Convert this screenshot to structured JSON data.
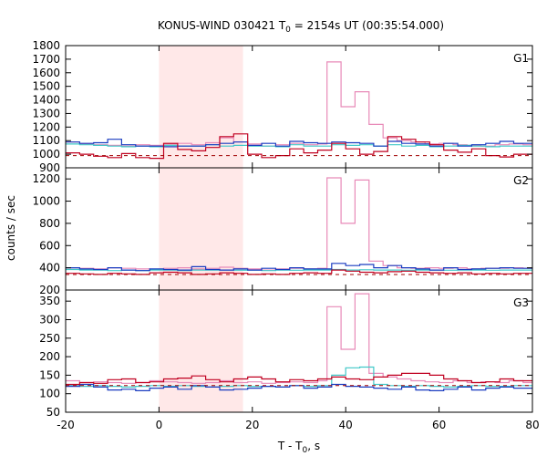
{
  "chart_data": {
    "type": "line",
    "title": "KONUS-WIND 030421 T",
    "title_sub": "0",
    "title_rest": " = 2154s UT (00:35:54.000)",
    "xlabel": "T - T",
    "xlabel_sub": "0",
    "xlabel_rest": ", s",
    "ylabel": "counts / sec",
    "xlim": [
      -20,
      80
    ],
    "xticks": [
      -20,
      0,
      20,
      40,
      60,
      80
    ],
    "highlight_interval": [
      0,
      18
    ],
    "highlight_color": "#ffe8e8",
    "colors": {
      "pink": "#e88ab8",
      "cyan": "#40c8c8",
      "blue": "#1a3cc0",
      "red": "#c00020",
      "background_dash": "#a00000"
    },
    "panels": [
      {
        "label": "G1",
        "ylim": [
          900,
          1800
        ],
        "yticks": [
          900,
          1000,
          1100,
          1200,
          1300,
          1400,
          1500,
          1600,
          1700,
          1800
        ],
        "background": 990,
        "series": [
          {
            "color": "pink",
            "x": [
              -20,
              -17,
              -14,
              -11,
              -8,
              -5,
              -2,
              1,
              4,
              7,
              10,
              13,
              16,
              19,
              22,
              25,
              28,
              31,
              34,
              36,
              39,
              42,
              45,
              48,
              51,
              54,
              57,
              60,
              63,
              66,
              69,
              72,
              75,
              78,
              80
            ],
            "y": [
              1090,
              1075,
              1070,
              1065,
              1060,
              1070,
              1065,
              1075,
              1080,
              1070,
              1085,
              1120,
              1090,
              1075,
              1060,
              1070,
              1080,
              1070,
              1075,
              1680,
              1350,
              1460,
              1220,
              1120,
              1100,
              1090,
              1075,
              1080,
              1070,
              1065,
              1060,
              1070,
              1075,
              1070,
              1070
            ]
          },
          {
            "color": "cyan",
            "x": [
              -20,
              -17,
              -14,
              -11,
              -8,
              -5,
              -2,
              1,
              4,
              7,
              10,
              13,
              16,
              19,
              22,
              25,
              28,
              31,
              34,
              37,
              40,
              43,
              46,
              49,
              52,
              55,
              58,
              61,
              64,
              67,
              70,
              73,
              76,
              80
            ],
            "y": [
              1075,
              1070,
              1065,
              1060,
              1055,
              1060,
              1055,
              1065,
              1060,
              1060,
              1070,
              1060,
              1065,
              1060,
              1060,
              1055,
              1070,
              1060,
              1060,
              1070,
              1065,
              1070,
              1060,
              1070,
              1060,
              1065,
              1055,
              1060,
              1065,
              1060,
              1055,
              1060,
              1060,
              1060
            ]
          },
          {
            "color": "blue",
            "x": [
              -20,
              -17,
              -14,
              -11,
              -8,
              -5,
              -2,
              1,
              4,
              7,
              10,
              13,
              16,
              19,
              22,
              25,
              28,
              31,
              34,
              37,
              40,
              43,
              46,
              49,
              52,
              55,
              58,
              61,
              64,
              67,
              70,
              73,
              76,
              80
            ],
            "y": [
              1090,
              1080,
              1085,
              1110,
              1070,
              1060,
              1060,
              1055,
              1060,
              1060,
              1070,
              1080,
              1090,
              1065,
              1080,
              1060,
              1095,
              1085,
              1080,
              1090,
              1085,
              1080,
              1060,
              1095,
              1080,
              1075,
              1060,
              1080,
              1060,
              1070,
              1080,
              1095,
              1080,
              1080
            ]
          },
          {
            "color": "red",
            "x": [
              -20,
              -17,
              -14,
              -11,
              -8,
              -5,
              -2,
              1,
              4,
              7,
              10,
              13,
              16,
              19,
              22,
              25,
              28,
              31,
              34,
              37,
              40,
              43,
              46,
              49,
              52,
              55,
              58,
              61,
              64,
              67,
              70,
              73,
              76,
              80
            ],
            "y": [
              1010,
              1000,
              985,
              975,
              1005,
              975,
              970,
              1080,
              1035,
              1025,
              1050,
              1130,
              1150,
              1000,
              975,
              990,
              1040,
              1010,
              1030,
              1080,
              1040,
              1000,
              1020,
              1130,
              1110,
              1090,
              1070,
              1030,
              1015,
              1040,
              990,
              980,
              1000,
              1000
            ]
          }
        ]
      },
      {
        "label": "G2",
        "ylim": [
          200,
          1300
        ],
        "yticks": [
          200,
          400,
          600,
          800,
          1000,
          1200
        ],
        "background": 340,
        "series": [
          {
            "color": "pink",
            "x": [
              -20,
              -17,
              -14,
              -11,
              -8,
              -5,
              -2,
              1,
              4,
              7,
              10,
              13,
              16,
              19,
              22,
              25,
              28,
              31,
              34,
              36,
              39,
              42,
              45,
              48,
              51,
              54,
              57,
              60,
              63,
              66,
              69,
              72,
              75,
              78,
              80
            ],
            "y": [
              400,
              395,
              390,
              400,
              395,
              390,
              385,
              395,
              400,
              390,
              395,
              405,
              395,
              390,
              380,
              390,
              395,
              390,
              395,
              1210,
              800,
              1190,
              460,
              420,
              400,
              395,
              400,
              395,
              400,
              390,
              395,
              395,
              400,
              395,
              395
            ]
          },
          {
            "color": "cyan",
            "x": [
              -20,
              -17,
              -14,
              -11,
              -8,
              -5,
              -2,
              1,
              4,
              7,
              10,
              13,
              16,
              19,
              22,
              25,
              28,
              31,
              34,
              37,
              40,
              43,
              46,
              49,
              52,
              55,
              58,
              61,
              64,
              67,
              70,
              73,
              76,
              80
            ],
            "y": [
              385,
              380,
              380,
              375,
              380,
              375,
              380,
              380,
              375,
              380,
              380,
              380,
              378,
              380,
              375,
              380,
              378,
              380,
              380,
              385,
              380,
              382,
              380,
              380,
              378,
              380,
              380,
              378,
              380,
              380,
              378,
              380,
              380,
              380
            ]
          },
          {
            "color": "blue",
            "x": [
              -20,
              -17,
              -14,
              -11,
              -8,
              -5,
              -2,
              1,
              4,
              7,
              10,
              13,
              16,
              19,
              22,
              25,
              28,
              31,
              34,
              37,
              40,
              43,
              46,
              49,
              52,
              55,
              58,
              61,
              64,
              67,
              70,
              73,
              76,
              80
            ],
            "y": [
              400,
              390,
              385,
              400,
              380,
              375,
              390,
              385,
              380,
              410,
              385,
              380,
              390,
              380,
              395,
              385,
              400,
              390,
              390,
              440,
              420,
              430,
              400,
              420,
              400,
              390,
              380,
              400,
              385,
              390,
              395,
              400,
              395,
              395
            ]
          },
          {
            "color": "red",
            "x": [
              -20,
              -17,
              -14,
              -11,
              -8,
              -5,
              -2,
              1,
              4,
              7,
              10,
              13,
              16,
              19,
              22,
              25,
              28,
              31,
              34,
              37,
              40,
              43,
              46,
              49,
              52,
              55,
              58,
              61,
              64,
              67,
              70,
              73,
              76,
              80
            ],
            "y": [
              350,
              345,
              340,
              350,
              345,
              340,
              355,
              360,
              355,
              340,
              345,
              355,
              350,
              340,
              345,
              340,
              350,
              355,
              350,
              380,
              370,
              360,
              355,
              365,
              370,
              360,
              355,
              350,
              355,
              345,
              350,
              345,
              350,
              350
            ]
          }
        ]
      },
      {
        "label": "G3",
        "ylim": [
          50,
          380
        ],
        "yticks": [
          50,
          100,
          150,
          200,
          250,
          300,
          350
        ],
        "background": 122,
        "series": [
          {
            "color": "pink",
            "x": [
              -20,
              -17,
              -14,
              -11,
              -8,
              -5,
              -2,
              1,
              4,
              7,
              10,
              13,
              16,
              19,
              22,
              25,
              28,
              31,
              34,
              36,
              39,
              42,
              45,
              48,
              51,
              54,
              57,
              60,
              63,
              66,
              69,
              72,
              75,
              78,
              80
            ],
            "y": [
              135,
              130,
              132,
              130,
              128,
              130,
              135,
              132,
              130,
              128,
              130,
              135,
              130,
              132,
              128,
              130,
              132,
              130,
              135,
              335,
              220,
              370,
              155,
              145,
              140,
              135,
              132,
              130,
              135,
              130,
              132,
              130,
              135,
              130,
              130
            ]
          },
          {
            "color": "cyan",
            "x": [
              -20,
              -17,
              -14,
              -11,
              -8,
              -5,
              -2,
              1,
              4,
              7,
              10,
              13,
              16,
              19,
              22,
              25,
              28,
              31,
              34,
              37,
              40,
              43,
              46,
              49,
              52,
              55,
              58,
              61,
              64,
              67,
              70,
              73,
              76,
              80
            ],
            "y": [
              122,
              120,
              122,
              120,
              118,
              120,
              122,
              120,
              122,
              120,
              118,
              120,
              122,
              120,
              120,
              118,
              122,
              120,
              122,
              150,
              170,
              172,
              125,
              122,
              120,
              122,
              120,
              118,
              120,
              122,
              120,
              120,
              122,
              122
            ]
          },
          {
            "color": "blue",
            "x": [
              -20,
              -17,
              -14,
              -11,
              -8,
              -5,
              -2,
              1,
              4,
              7,
              10,
              13,
              16,
              19,
              22,
              25,
              28,
              31,
              34,
              37,
              40,
              43,
              46,
              49,
              52,
              55,
              58,
              61,
              64,
              67,
              70,
              73,
              76,
              80
            ],
            "y": [
              120,
              125,
              118,
              110,
              112,
              108,
              115,
              118,
              112,
              122,
              118,
              110,
              112,
              115,
              120,
              118,
              122,
              115,
              118,
              125,
              120,
              118,
              115,
              112,
              118,
              110,
              108,
              112,
              118,
              110,
              115,
              118,
              115,
              115
            ]
          },
          {
            "color": "red",
            "x": [
              -20,
              -17,
              -14,
              -11,
              -8,
              -5,
              -2,
              1,
              4,
              7,
              10,
              13,
              16,
              19,
              22,
              25,
              28,
              31,
              34,
              37,
              40,
              43,
              46,
              49,
              52,
              55,
              58,
              61,
              64,
              67,
              70,
              73,
              76,
              80
            ],
            "y": [
              125,
              130,
              128,
              138,
              140,
              130,
              132,
              140,
              142,
              148,
              138,
              132,
              140,
              145,
              140,
              132,
              138,
              135,
              140,
              145,
              140,
              138,
              145,
              150,
              155,
              155,
              150,
              140,
              135,
              130,
              132,
              140,
              135,
              140
            ]
          }
        ]
      }
    ]
  }
}
